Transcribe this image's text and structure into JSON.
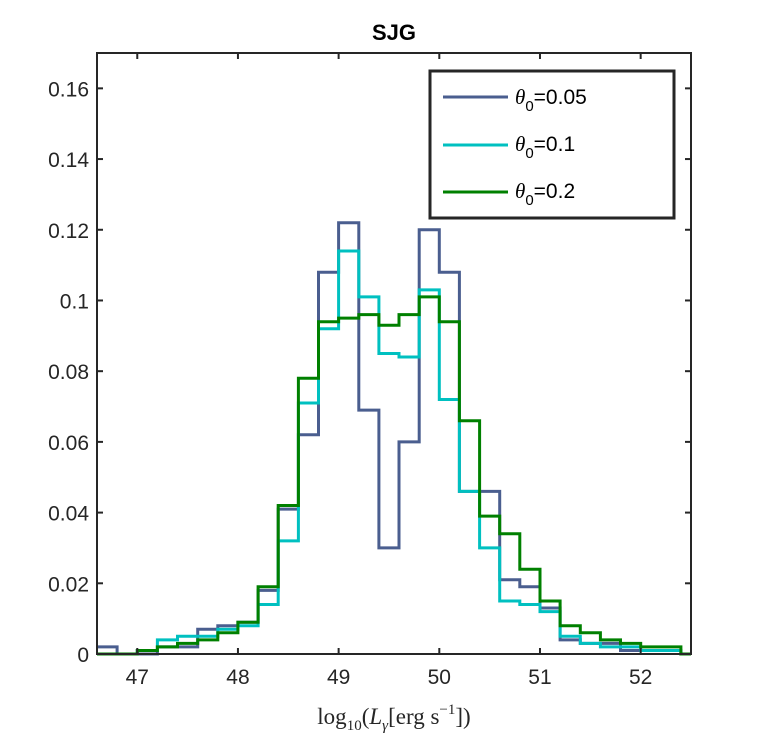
{
  "chart_data": {
    "type": "histogram",
    "title": "SJG",
    "xlabel": {
      "prefix": "log",
      "prefix_sub": "10",
      "open": "(",
      "var": "L",
      "var_sub": "γ",
      "bracket_open": "[erg s",
      "exponent": "−1",
      "bracket_close": "])"
    },
    "ylabel": "",
    "xlim": [
      46.6,
      52.5
    ],
    "ylim": [
      0,
      0.17
    ],
    "xticks": [
      47,
      48,
      49,
      50,
      51,
      52
    ],
    "yticks": [
      0,
      0.02,
      0.04,
      0.06,
      0.08,
      0.1,
      0.12,
      0.14,
      0.16
    ],
    "xtick_labels": [
      "47",
      "48",
      "49",
      "50",
      "51",
      "52"
    ],
    "ytick_labels": [
      "0",
      "0.02",
      "0.04",
      "0.06",
      "0.08",
      "0.1",
      "0.12",
      "0.14",
      "0.16"
    ],
    "grid": false,
    "legend_position": "top-right",
    "bin_edges": [
      46.6,
      46.8,
      47.0,
      47.2,
      47.4,
      47.6,
      47.8,
      48.0,
      48.2,
      48.4,
      48.6,
      48.8,
      49.0,
      49.2,
      49.4,
      49.6,
      49.8,
      50.0,
      50.2,
      50.4,
      50.6,
      50.8,
      51.0,
      51.2,
      51.4,
      51.6,
      51.8,
      52.0,
      52.2,
      52.4,
      52.6
    ],
    "series": [
      {
        "name": "θ0=0.05",
        "legend_symbol": "θ",
        "legend_sub": "0",
        "legend_value": "=0.05",
        "color": "#4a5e8f",
        "values": [
          0.002,
          0.0,
          0.0,
          0.002,
          0.002,
          0.007,
          0.008,
          0.009,
          0.018,
          0.041,
          0.062,
          0.108,
          0.122,
          0.069,
          0.03,
          0.06,
          0.12,
          0.108,
          0.046,
          0.046,
          0.021,
          0.019,
          0.013,
          0.004,
          0.003,
          0.003,
          0.001,
          0.001,
          0.001,
          0.0
        ]
      },
      {
        "name": "θ0=0.1",
        "legend_symbol": "θ",
        "legend_sub": "0",
        "legend_value": "=0.1",
        "color": "#00c0c0",
        "values": [
          0.0,
          0.0,
          0.001,
          0.004,
          0.005,
          0.005,
          0.007,
          0.008,
          0.014,
          0.032,
          0.071,
          0.092,
          0.114,
          0.101,
          0.085,
          0.084,
          0.103,
          0.072,
          0.046,
          0.03,
          0.015,
          0.014,
          0.012,
          0.005,
          0.003,
          0.002,
          0.002,
          0.001,
          0.001,
          0.0
        ]
      },
      {
        "name": "θ0=0.2",
        "legend_symbol": "θ",
        "legend_sub": "0",
        "legend_value": "=0.2",
        "color": "#008000",
        "values": [
          0.0,
          0.0,
          0.001,
          0.002,
          0.003,
          0.004,
          0.006,
          0.009,
          0.019,
          0.042,
          0.078,
          0.094,
          0.095,
          0.096,
          0.093,
          0.096,
          0.101,
          0.094,
          0.066,
          0.039,
          0.034,
          0.024,
          0.015,
          0.008,
          0.006,
          0.004,
          0.003,
          0.002,
          0.002,
          0.0
        ]
      }
    ]
  }
}
